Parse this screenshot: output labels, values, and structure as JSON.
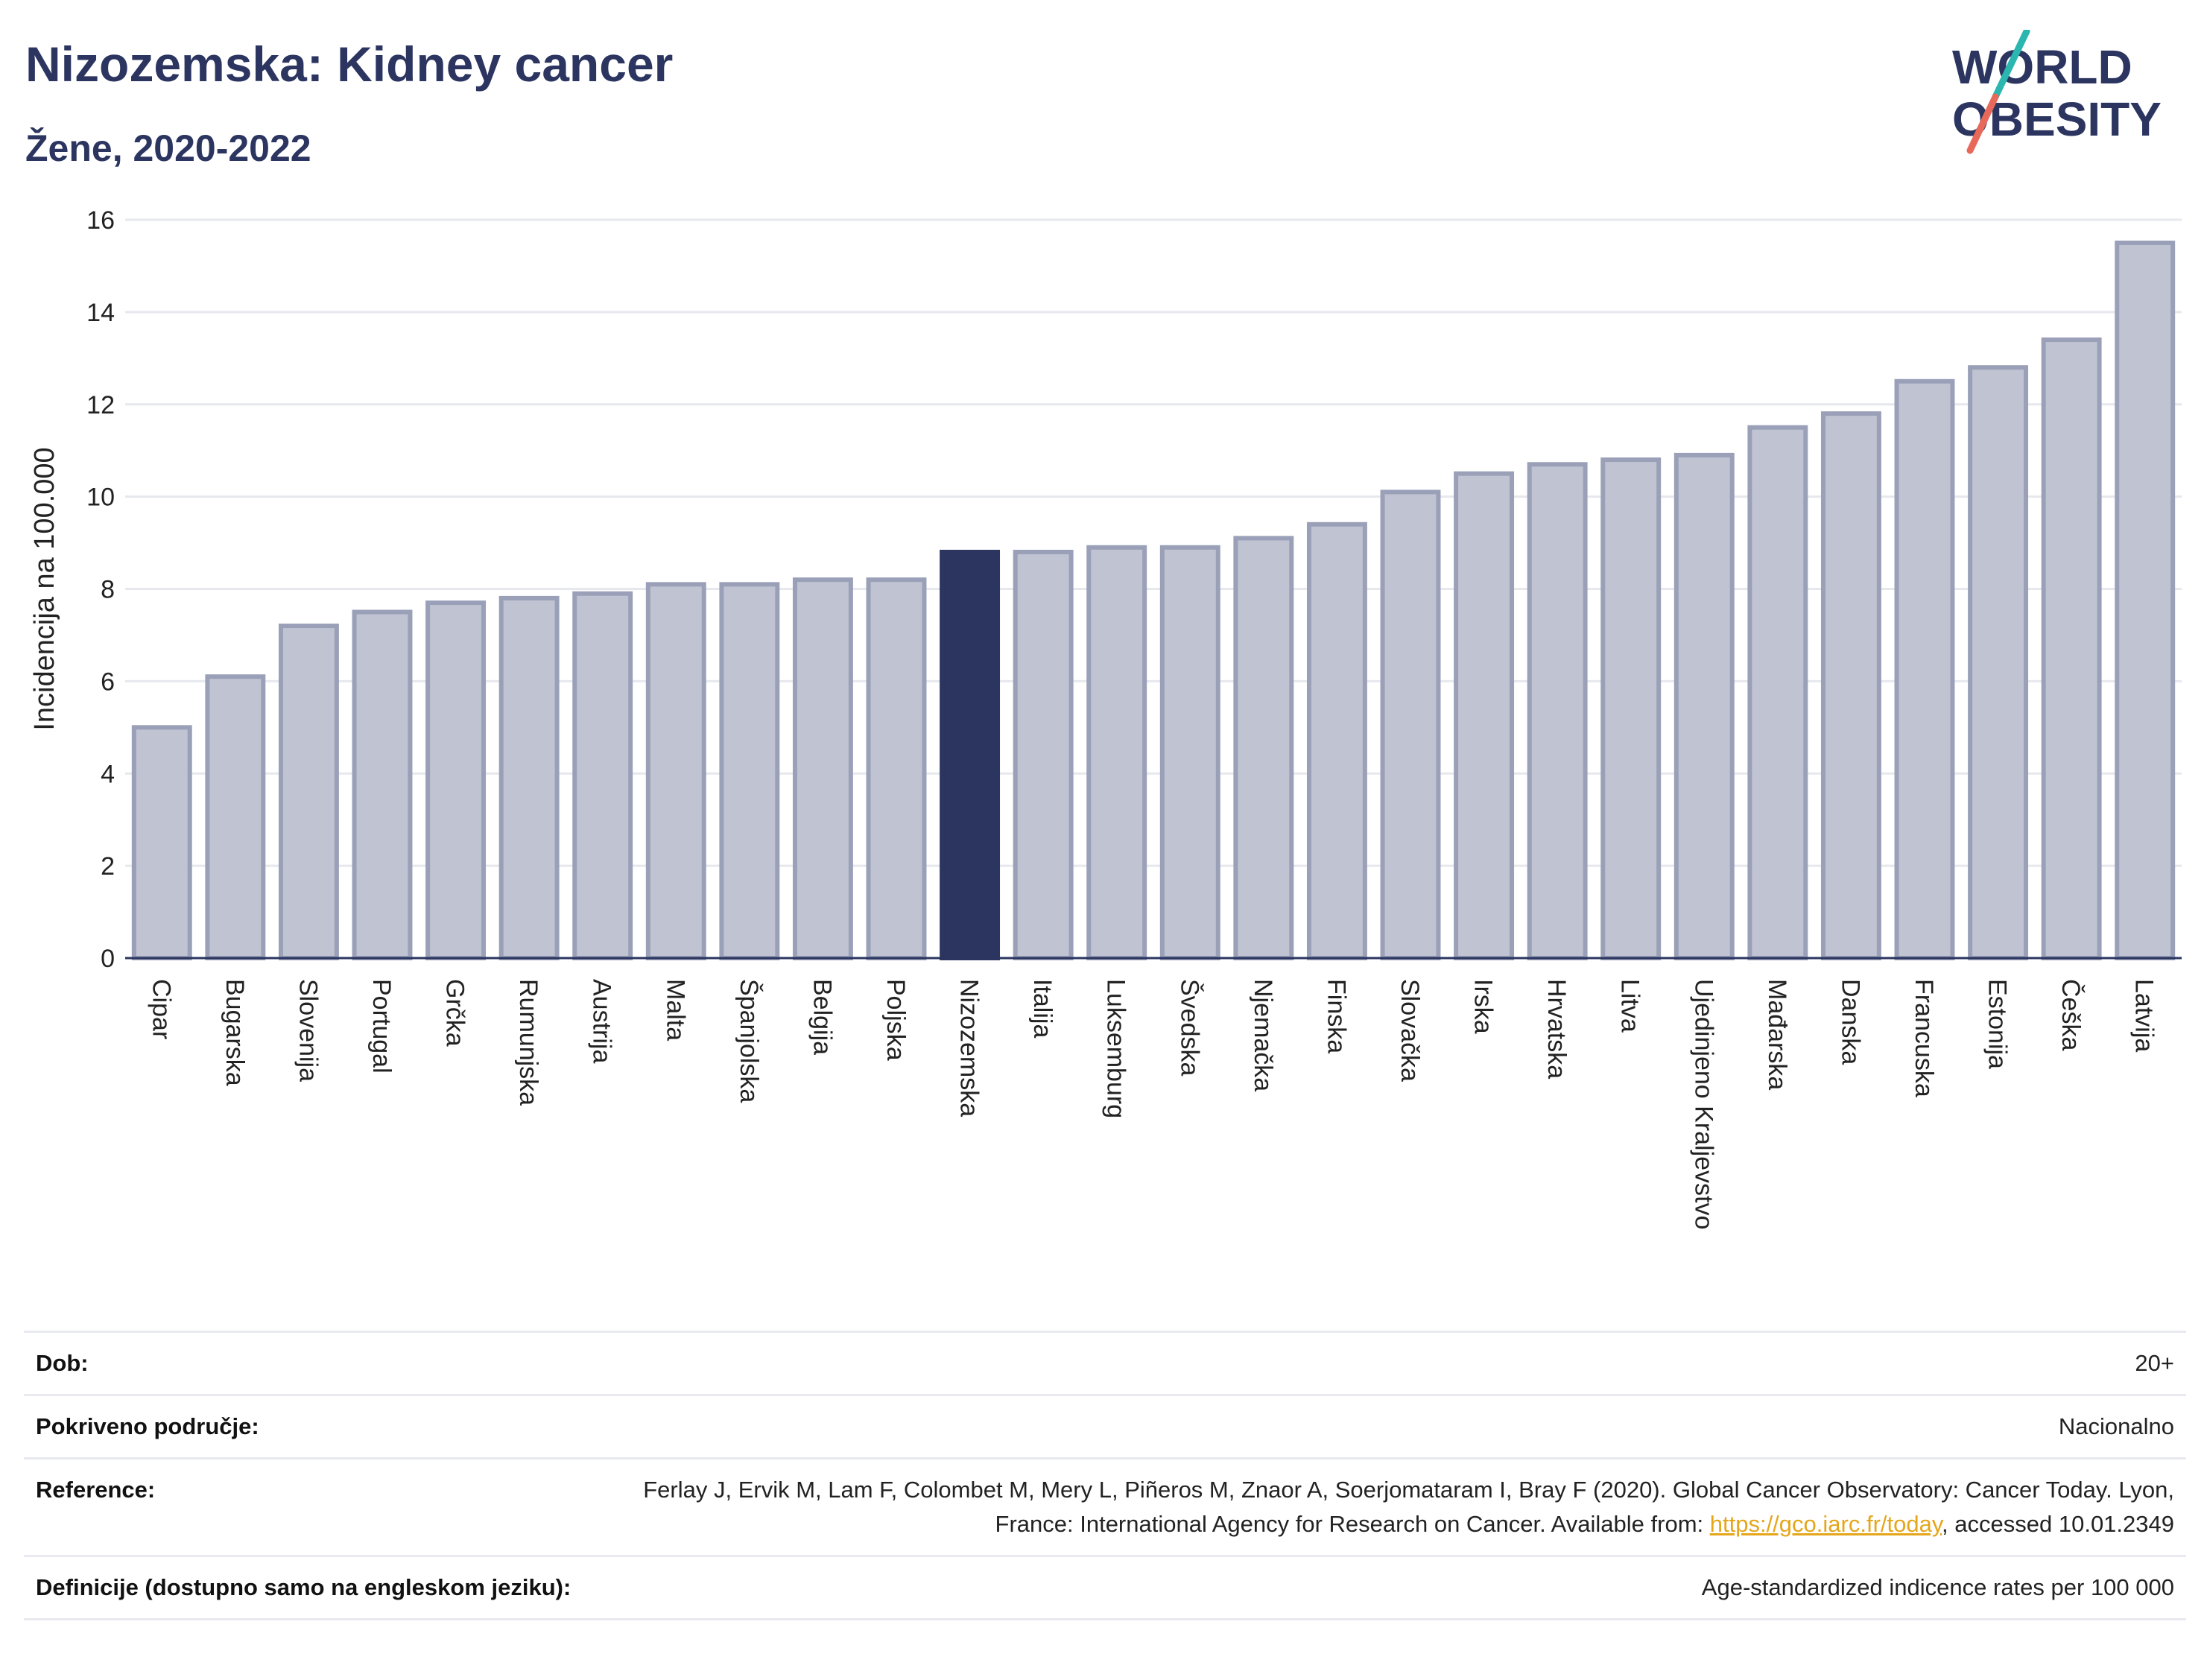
{
  "header": {
    "title": "Nizozemska: Kidney cancer",
    "subtitle": "Žene, 2020-2022",
    "logo_line1": "WORLD",
    "logo_line2": "OBESITY"
  },
  "colors": {
    "title": "#2b3560",
    "bar_default": "#c0c3d1",
    "bar_default_stroke": "#9aa0b8",
    "bar_highlight": "#2b3560",
    "grid": "#e6e8ee",
    "logo_teal": "#2bb6b0",
    "logo_coral": "#e8685a"
  },
  "chart_data": {
    "type": "bar",
    "ylabel": "Incidencija na 100.000",
    "ylim": [
      0,
      16
    ],
    "yticks": [
      0,
      2,
      4,
      6,
      8,
      10,
      12,
      14,
      16
    ],
    "highlight": "Nizozemska",
    "categories": [
      "Cipar",
      "Bugarska",
      "Slovenija",
      "Portugal",
      "Grčka",
      "Rumunjska",
      "Austrija",
      "Malta",
      "Španjolska",
      "Belgija",
      "Poljska",
      "Nizozemska",
      "Italija",
      "Luksemburg",
      "Švedska",
      "Njemačka",
      "Finska",
      "Slovačka",
      "Irska",
      "Hrvatska",
      "Litva",
      "Ujedinjeno Kraljevstvo",
      "Mađarska",
      "Danska",
      "Francuska",
      "Estonija",
      "Češka",
      "Latvija"
    ],
    "values": [
      5.0,
      6.1,
      7.2,
      7.5,
      7.7,
      7.8,
      7.9,
      8.1,
      8.1,
      8.2,
      8.2,
      8.8,
      8.8,
      8.9,
      8.9,
      9.1,
      9.4,
      10.1,
      10.5,
      10.7,
      10.8,
      10.9,
      11.5,
      11.8,
      12.5,
      12.8,
      13.4,
      15.5
    ]
  },
  "info": {
    "age_label": "Dob:",
    "age_value": "20+",
    "coverage_label": "Pokriveno područje:",
    "coverage_value": "Nacionalno",
    "reference_label": "Reference:",
    "reference_text": "Ferlay J, Ervik M, Lam F, Colombet M, Mery L, Piñeros M, Znaor A, Soerjomataram I, Bray F (2020). Global Cancer Observatory: Cancer Today. Lyon, France: International Agency for Research on Cancer. Available from: ",
    "reference_link": "https://gco.iarc.fr/today",
    "reference_suffix": ", accessed 10.01.2349",
    "definition_label": "Definicije (dostupno samo na engleskom jeziku):",
    "definition_value": "Age-standardized indicence rates per 100 000"
  }
}
